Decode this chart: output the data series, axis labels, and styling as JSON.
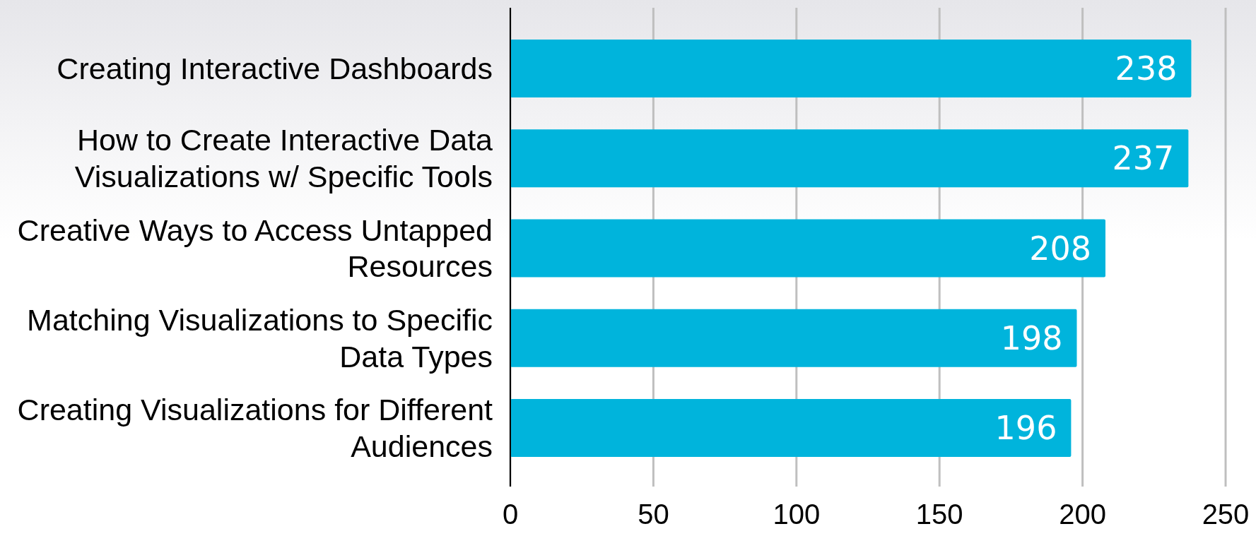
{
  "chart_data": {
    "type": "bar",
    "orientation": "horizontal",
    "categories": [
      "Creating Interactive Dashboards",
      "How to Create Interactive Data Visualizations w/ Specific Tools",
      "Creative Ways to Access Untapped Resources",
      "Matching Visualizations to Specific Data Types",
      "Creating Visualizations for Different Audiences"
    ],
    "values": [
      238,
      237,
      208,
      198,
      196
    ],
    "color": "#00b4dc",
    "xlim": [
      0,
      250
    ],
    "xticks": [
      0,
      50,
      100,
      150,
      200,
      250
    ],
    "grid": "x",
    "data_labels": true
  }
}
